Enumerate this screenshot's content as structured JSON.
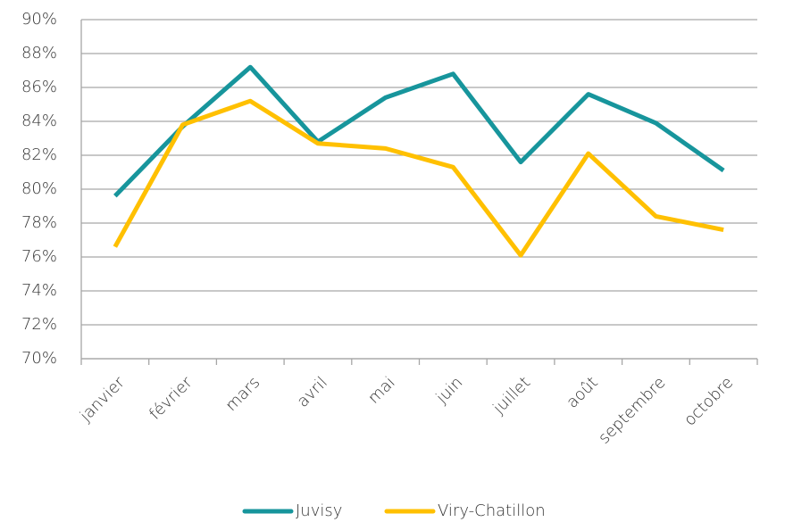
{
  "chart_data": {
    "type": "line",
    "categories": [
      "janvier",
      "février",
      "mars",
      "avril",
      "mai",
      "juin",
      "juillet",
      "août",
      "septembre",
      "octobre"
    ],
    "series": [
      {
        "name": "Juvisy",
        "color": "#17959c",
        "values": [
          79.6,
          83.7,
          87.2,
          82.8,
          85.4,
          86.8,
          81.6,
          85.6,
          83.9,
          81.1
        ]
      },
      {
        "name": "Viry-Chatillon",
        "color": "#ffc000",
        "values": [
          76.6,
          83.8,
          85.2,
          82.7,
          82.4,
          81.3,
          76.1,
          82.1,
          78.4,
          77.6
        ]
      }
    ],
    "ylim": [
      70,
      90
    ],
    "yticks": [
      {
        "value": 70,
        "label": "70%"
      },
      {
        "value": 72,
        "label": "72%"
      },
      {
        "value": 74,
        "label": "74%"
      },
      {
        "value": 76,
        "label": "76%"
      },
      {
        "value": 78,
        "label": "78%"
      },
      {
        "value": 80,
        "label": "80%"
      },
      {
        "value": 82,
        "label": "82%"
      },
      {
        "value": 84,
        "label": "84%"
      },
      {
        "value": 86,
        "label": "86%"
      },
      {
        "value": 88,
        "label": "88%"
      },
      {
        "value": 90,
        "label": "90%"
      }
    ],
    "grid": true,
    "legend": "bottom"
  }
}
